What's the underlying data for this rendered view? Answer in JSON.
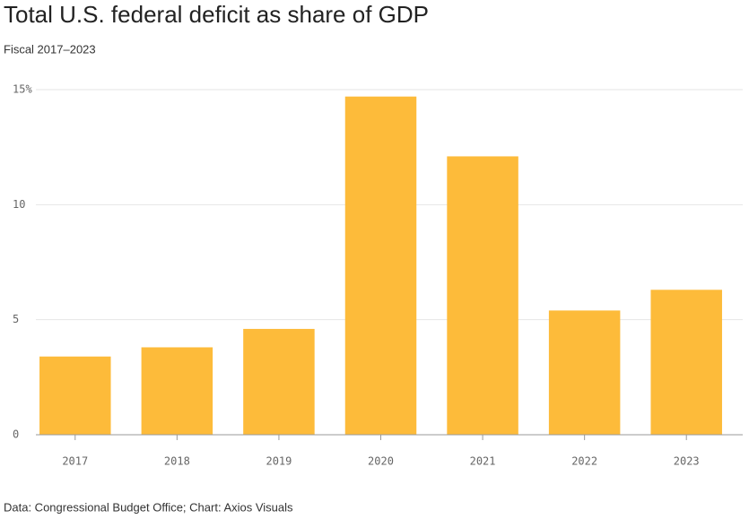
{
  "chart_data": {
    "type": "bar",
    "title": "Total U.S. federal deficit as share of GDP",
    "subtitle": "Fiscal 2017–2023",
    "source": "Data: Congressional Budget Office; Chart: Axios Visuals",
    "categories": [
      "2017",
      "2018",
      "2019",
      "2020",
      "2021",
      "2022",
      "2023"
    ],
    "values": [
      3.4,
      3.8,
      4.6,
      14.7,
      12.1,
      5.4,
      6.3
    ],
    "color": "#fdbb3a",
    "ylim": [
      0,
      15
    ],
    "yticks": [
      0,
      5,
      10,
      {
        "value": 15,
        "label": "15%"
      }
    ],
    "grid": true
  }
}
